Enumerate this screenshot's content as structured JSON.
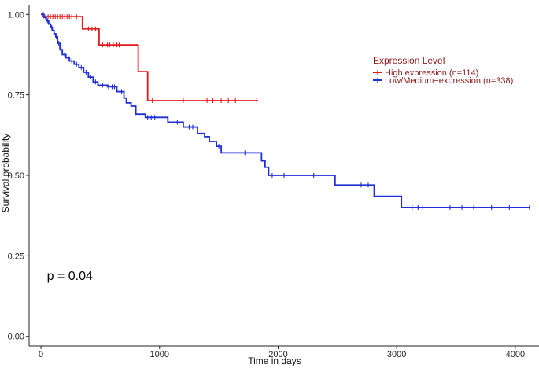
{
  "chart_data": {
    "type": "line",
    "title": "",
    "xlabel": "Time in days",
    "ylabel": "Survival probability",
    "xlim": [
      -100,
      4200
    ],
    "ylim": [
      -0.03,
      1.03
    ],
    "x_ticks": [
      0,
      1000,
      2000,
      3000,
      4000
    ],
    "y_ticks": [
      0.0,
      0.25,
      0.5,
      0.75,
      1.0
    ],
    "x_tick_labels": [
      "0",
      "1000",
      "2000",
      "3000",
      "4000"
    ],
    "y_tick_labels": [
      "0.00",
      "0.25",
      "0.50",
      "0.75",
      "1.00"
    ],
    "grid": false,
    "legend": {
      "title": "Expression Level",
      "placement": "top-right"
    },
    "annotations": [
      {
        "text": "p = 0.04",
        "x": 50,
        "y": 0.19
      }
    ],
    "series": [
      {
        "name": "High expression (n=114)",
        "color": "#e41a1c",
        "steps": [
          [
            0,
            1.0
          ],
          [
            20,
            0.993
          ],
          [
            350,
            0.955
          ],
          [
            490,
            0.905
          ],
          [
            820,
            0.822
          ],
          [
            900,
            0.732
          ],
          [
            1830,
            0.732
          ]
        ],
        "censors": [
          40,
          60,
          80,
          100,
          120,
          140,
          160,
          180,
          200,
          220,
          240,
          260,
          300,
          400,
          430,
          460,
          520,
          560,
          580,
          610,
          640,
          660,
          940,
          1200,
          1400,
          1450,
          1520,
          1580,
          1640,
          1820
        ]
      },
      {
        "name": "Low/Medium−expression (n=338)",
        "color": "#1f2fd6",
        "steps": [
          [
            0,
            1.0
          ],
          [
            25,
            0.99
          ],
          [
            45,
            0.98
          ],
          [
            65,
            0.97
          ],
          [
            80,
            0.96
          ],
          [
            95,
            0.95
          ],
          [
            110,
            0.94
          ],
          [
            125,
            0.93
          ],
          [
            140,
            0.91
          ],
          [
            160,
            0.89
          ],
          [
            180,
            0.875
          ],
          [
            210,
            0.865
          ],
          [
            240,
            0.855
          ],
          [
            280,
            0.845
          ],
          [
            320,
            0.835
          ],
          [
            360,
            0.82
          ],
          [
            400,
            0.805
          ],
          [
            440,
            0.79
          ],
          [
            480,
            0.78
          ],
          [
            560,
            0.775
          ],
          [
            640,
            0.76
          ],
          [
            700,
            0.74
          ],
          [
            720,
            0.725
          ],
          [
            760,
            0.715
          ],
          [
            800,
            0.69
          ],
          [
            880,
            0.68
          ],
          [
            1070,
            0.665
          ],
          [
            1200,
            0.65
          ],
          [
            1320,
            0.63
          ],
          [
            1380,
            0.62
          ],
          [
            1420,
            0.605
          ],
          [
            1480,
            0.59
          ],
          [
            1520,
            0.57
          ],
          [
            1860,
            0.545
          ],
          [
            1890,
            0.525
          ],
          [
            1920,
            0.5
          ],
          [
            2480,
            0.47
          ],
          [
            2810,
            0.435
          ],
          [
            3040,
            0.4
          ],
          [
            4120,
            0.4
          ]
        ],
        "censors": [
          20,
          40,
          55,
          90,
          130,
          150,
          170,
          200,
          230,
          260,
          300,
          340,
          380,
          420,
          460,
          520,
          570,
          600,
          620,
          680,
          900,
          930,
          960,
          1150,
          1250,
          1280,
          1350,
          1500,
          1720,
          1950,
          2050,
          2300,
          2700,
          2760,
          3130,
          3180,
          3220,
          3450,
          3550,
          3650,
          3800,
          3950,
          4120
        ]
      }
    ]
  }
}
